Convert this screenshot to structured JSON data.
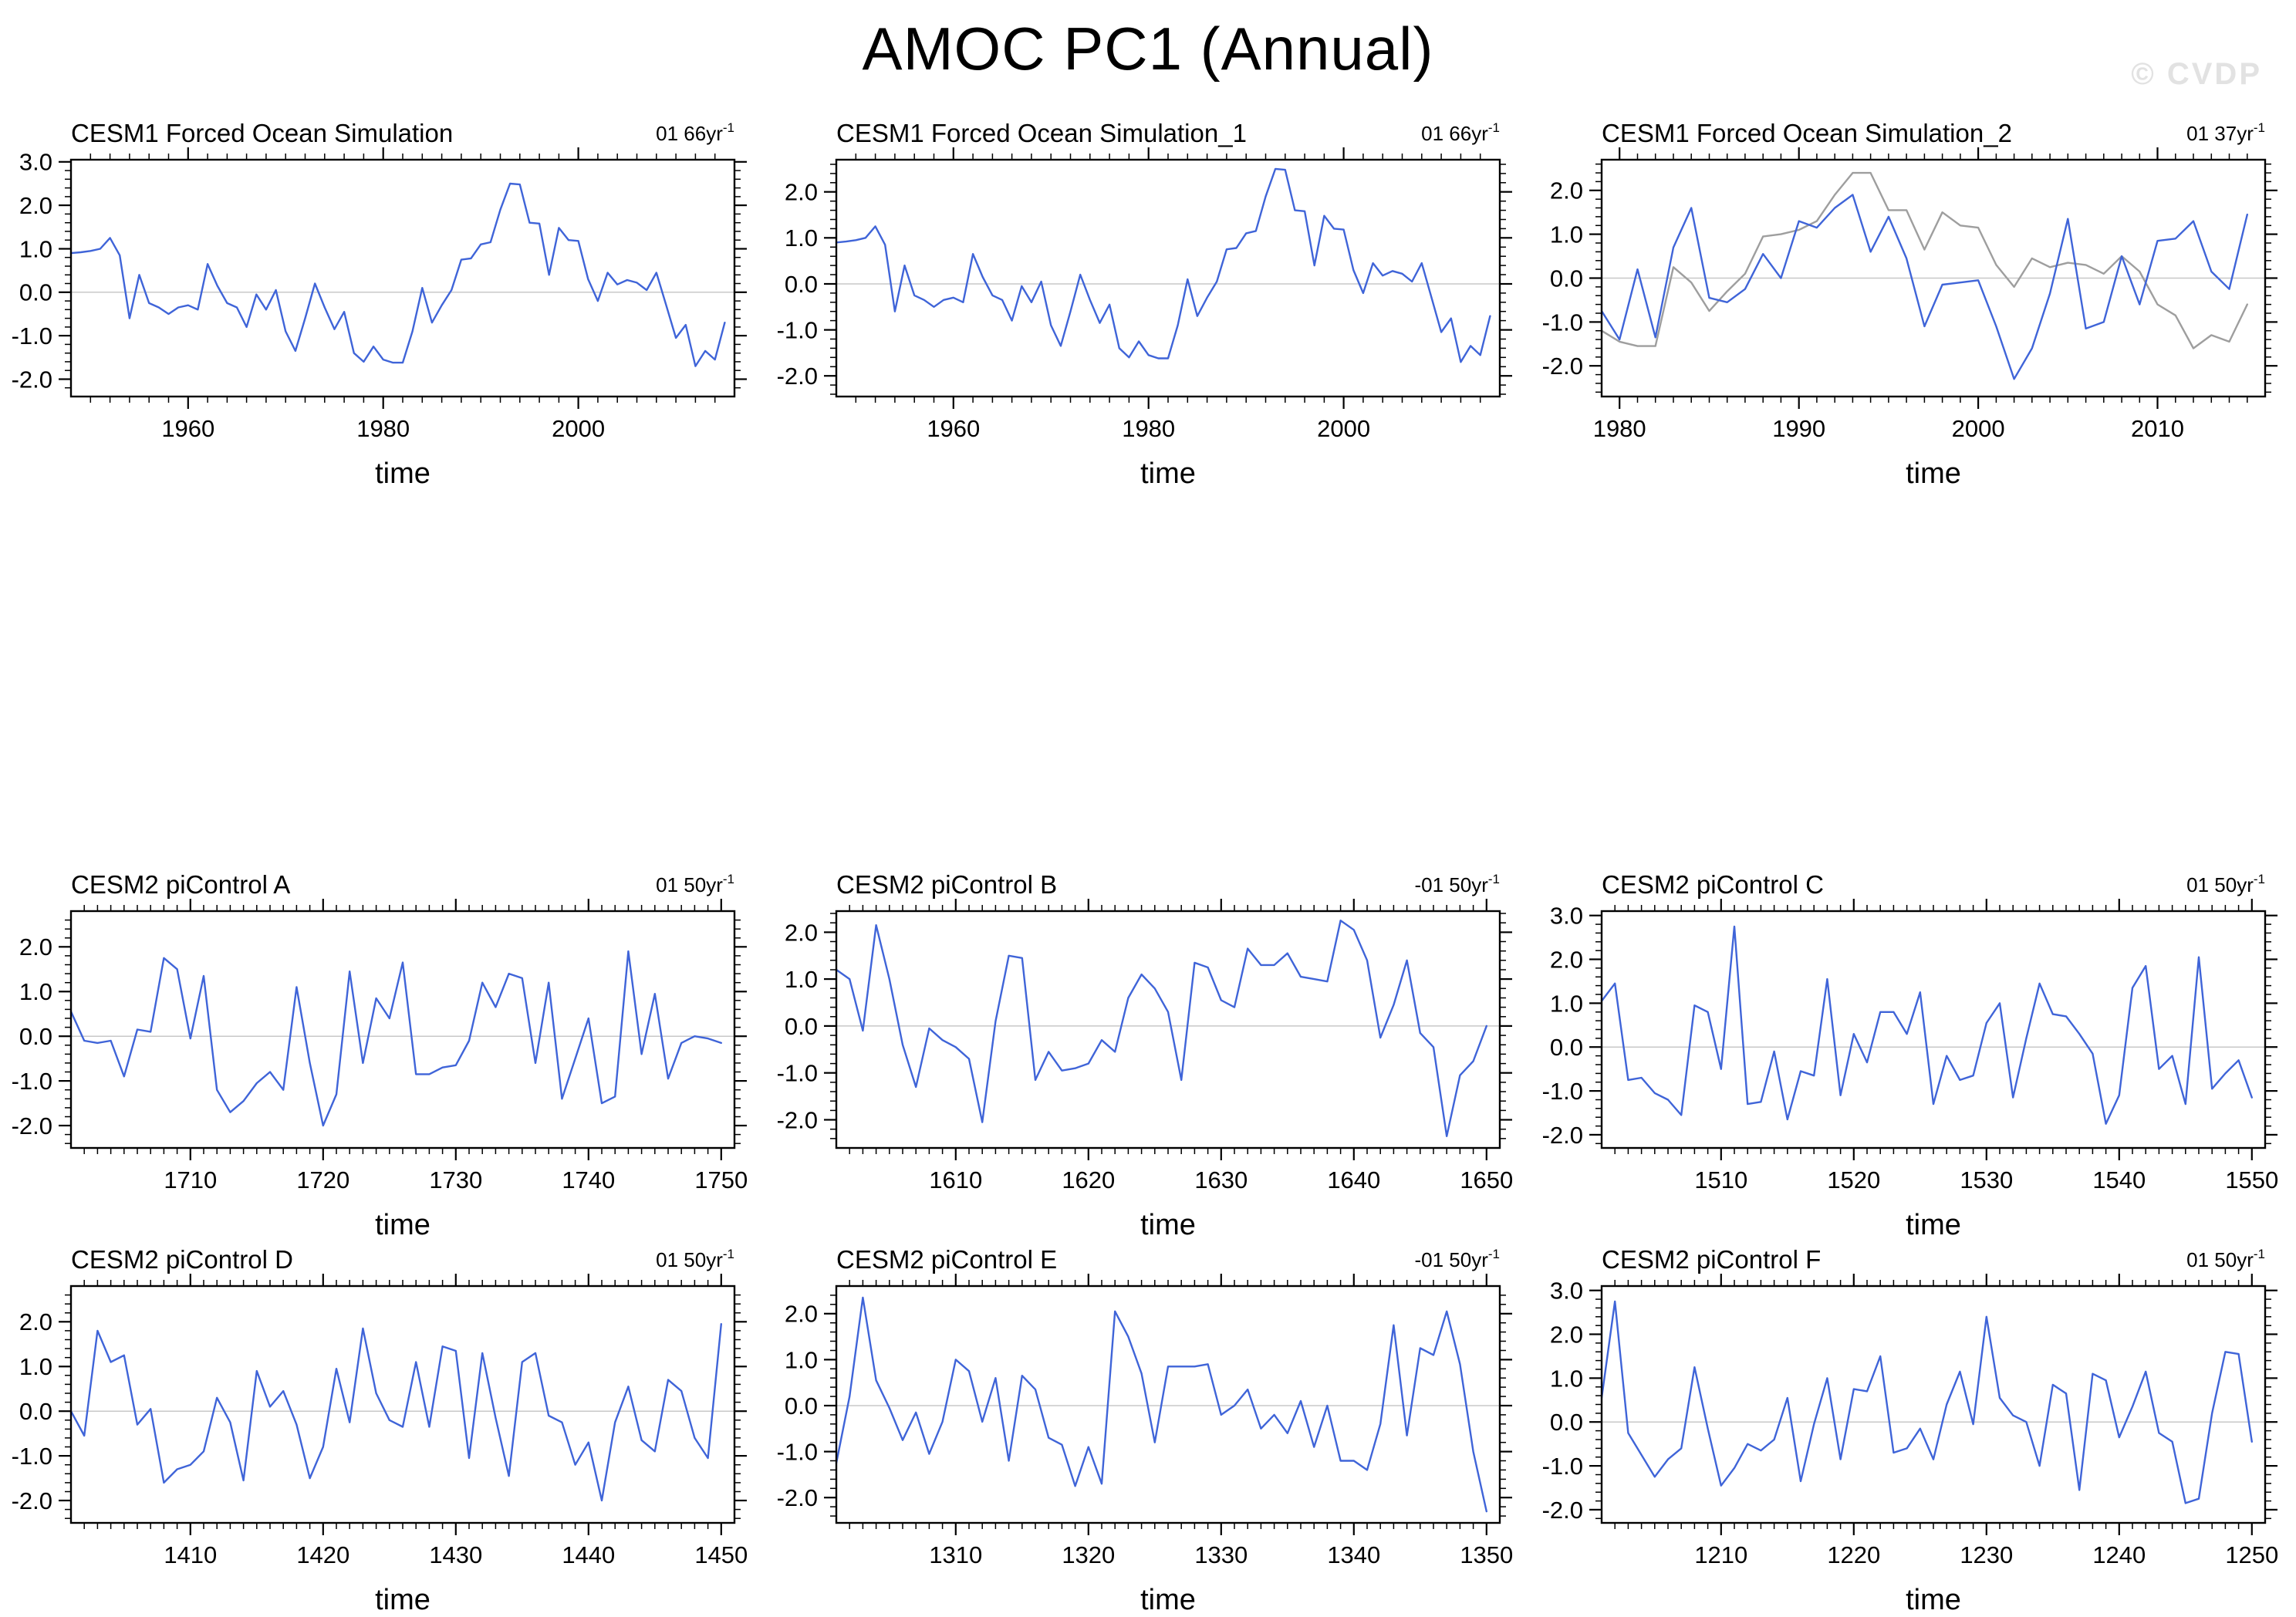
{
  "header": {
    "title": "AMOC PC1 (Annual)",
    "watermark": "© CVDP"
  },
  "colors": {
    "line_blue": "#3f64d8",
    "line_gray": "#9e9e9e",
    "zero_line": "#c8c8c8",
    "axis": "#000000",
    "watermark": "#e2e2e2",
    "background": "#ffffff"
  },
  "chart_data": [
    {
      "id": "cesm1-forced-ocean-simulation",
      "type": "line",
      "title": "CESM1 Forced Ocean Simulation",
      "corner_label": "01 66yr",
      "corner_sup": "-1",
      "xlabel": "time",
      "x_range": [
        1948,
        2016
      ],
      "x_major_ticks": [
        1960,
        1980,
        2000
      ],
      "x_minor_step": 2,
      "ylim": [
        -2.4,
        3.05
      ],
      "y_tick_labels": [
        "3.0",
        "2.0",
        "1.0",
        "0.0",
        "-1.0",
        "-2.0"
      ],
      "y_minor_step": 0.2,
      "grid": false,
      "legend": "none",
      "series": [
        {
          "name": "series_blue",
          "color": "#3f64d8",
          "x_start": 1948,
          "values": [
            0.9,
            0.92,
            0.95,
            1.0,
            1.25,
            0.85,
            -0.6,
            0.4,
            -0.25,
            -0.35,
            -0.5,
            -0.35,
            -0.3,
            -0.4,
            0.65,
            0.15,
            -0.25,
            -0.35,
            -0.8,
            -0.05,
            -0.4,
            0.05,
            -0.9,
            -1.35,
            -0.6,
            0.2,
            -0.35,
            -0.85,
            -0.45,
            -1.4,
            -1.6,
            -1.25,
            -1.55,
            -1.62,
            -1.62,
            -0.9,
            0.1,
            -0.7,
            -0.3,
            0.05,
            0.75,
            0.78,
            1.1,
            1.15,
            1.9,
            2.5,
            2.48,
            1.6,
            1.58,
            0.4,
            1.48,
            1.2,
            1.18,
            0.3,
            -0.2,
            0.45,
            0.18,
            0.28,
            0.22,
            0.05,
            0.45,
            -0.3,
            -1.05,
            -0.75,
            -1.7,
            -1.35,
            -1.55,
            -0.7
          ]
        }
      ]
    },
    {
      "id": "cesm1-forced-ocean-simulation-1",
      "type": "line",
      "title": "CESM1 Forced Ocean Simulation_1",
      "corner_label": "01 66yr",
      "corner_sup": "-1",
      "xlabel": "time",
      "x_range": [
        1948,
        2016
      ],
      "x_major_ticks": [
        1960,
        1980,
        2000
      ],
      "x_minor_step": 2,
      "ylim": [
        -2.45,
        2.7
      ],
      "y_tick_labels": [
        "2.0",
        "1.0",
        "0.0",
        "-1.0",
        "-2.0"
      ],
      "y_minor_step": 0.2,
      "grid": false,
      "legend": "none",
      "series": [
        {
          "name": "series_blue",
          "color": "#3f64d8",
          "x_start": 1948,
          "values": [
            0.9,
            0.92,
            0.95,
            1.0,
            1.25,
            0.85,
            -0.6,
            0.4,
            -0.25,
            -0.35,
            -0.5,
            -0.35,
            -0.3,
            -0.4,
            0.65,
            0.15,
            -0.25,
            -0.35,
            -0.8,
            -0.05,
            -0.4,
            0.05,
            -0.9,
            -1.35,
            -0.6,
            0.2,
            -0.35,
            -0.85,
            -0.45,
            -1.4,
            -1.6,
            -1.25,
            -1.55,
            -1.62,
            -1.62,
            -0.9,
            0.1,
            -0.7,
            -0.3,
            0.05,
            0.75,
            0.78,
            1.1,
            1.15,
            1.9,
            2.5,
            2.48,
            1.6,
            1.58,
            0.4,
            1.48,
            1.2,
            1.18,
            0.3,
            -0.2,
            0.45,
            0.18,
            0.28,
            0.22,
            0.05,
            0.45,
            -0.3,
            -1.05,
            -0.75,
            -1.7,
            -1.35,
            -1.55,
            -0.7
          ]
        }
      ]
    },
    {
      "id": "cesm1-forced-ocean-simulation-2",
      "type": "line",
      "title": "CESM1 Forced Ocean Simulation_2",
      "corner_label": "01 37yr",
      "corner_sup": "-1",
      "xlabel": "time",
      "x_range": [
        1979,
        2016
      ],
      "x_major_ticks": [
        1980,
        1990,
        2000,
        2010
      ],
      "x_minor_step": 1,
      "ylim": [
        -2.7,
        2.7
      ],
      "y_tick_labels": [
        "2.0",
        "1.0",
        "0.0",
        "-1.0",
        "-2.0"
      ],
      "y_minor_step": 0.2,
      "grid": false,
      "legend": "none",
      "series": [
        {
          "name": "series_gray",
          "color": "#9e9e9e",
          "x_start": 1979,
          "values": [
            -1.2,
            -1.45,
            -1.55,
            -1.55,
            0.25,
            -0.1,
            -0.75,
            -0.3,
            0.1,
            0.95,
            1.0,
            1.1,
            1.3,
            1.9,
            2.4,
            2.4,
            1.55,
            1.55,
            0.65,
            1.5,
            1.2,
            1.15,
            0.3,
            -0.2,
            0.45,
            0.25,
            0.35,
            0.3,
            0.1,
            0.5,
            0.15,
            -0.6,
            -0.85,
            -1.6,
            -1.3,
            -1.45,
            -0.6
          ]
        },
        {
          "name": "series_blue",
          "color": "#3f64d8",
          "x_start": 1979,
          "values": [
            -0.75,
            -1.4,
            0.2,
            -1.35,
            0.7,
            1.6,
            -0.45,
            -0.55,
            -0.25,
            0.55,
            0.0,
            1.3,
            1.15,
            1.6,
            1.9,
            0.6,
            1.4,
            0.45,
            -1.1,
            -0.15,
            -0.1,
            -0.05,
            -1.1,
            -2.3,
            -1.6,
            -0.35,
            1.35,
            -1.15,
            -1.0,
            0.5,
            -0.6,
            0.85,
            0.9,
            1.3,
            0.15,
            -0.25,
            1.45
          ]
        }
      ]
    },
    {
      "id": "cesm2-picontrol-a",
      "type": "line",
      "title": "CESM2 piControl A",
      "corner_label": "01 50yr",
      "corner_sup": "-1",
      "xlabel": "time",
      "x_range": [
        1701,
        1751
      ],
      "x_major_ticks": [
        1710,
        1720,
        1730,
        1740,
        1750
      ],
      "x_minor_step": 1,
      "ylim": [
        -2.5,
        2.8
      ],
      "y_tick_labels": [
        "2.0",
        "1.0",
        "0.0",
        "-1.0",
        "-2.0"
      ],
      "y_minor_step": 0.2,
      "grid": false,
      "legend": "none",
      "series": [
        {
          "name": "series_blue",
          "color": "#3f64d8",
          "x_start": 1701,
          "values": [
            0.55,
            -0.1,
            -0.15,
            -0.1,
            -0.9,
            0.15,
            0.1,
            1.75,
            1.5,
            -0.05,
            1.35,
            -1.2,
            -1.7,
            -1.45,
            -1.05,
            -0.8,
            -1.2,
            1.1,
            -0.6,
            -2.0,
            -1.3,
            1.45,
            -0.6,
            0.85,
            0.4,
            1.65,
            -0.85,
            -0.85,
            -0.7,
            -0.65,
            -0.1,
            1.2,
            0.65,
            1.4,
            1.3,
            -0.6,
            1.2,
            -1.4,
            -0.5,
            0.4,
            -1.5,
            -1.35,
            1.9,
            -0.4,
            0.95,
            -0.95,
            -0.15,
            0.0,
            -0.05,
            -0.15
          ]
        }
      ]
    },
    {
      "id": "cesm2-picontrol-b",
      "type": "line",
      "title": "CESM2 piControl B",
      "corner_label": "-01 50yr",
      "corner_sup": "-1",
      "xlabel": "time",
      "x_range": [
        1601,
        1651
      ],
      "x_major_ticks": [
        1610,
        1620,
        1630,
        1640,
        1650
      ],
      "x_minor_step": 1,
      "ylim": [
        -2.6,
        2.45
      ],
      "y_tick_labels": [
        "2.0",
        "1.0",
        "0.0",
        "-1.0",
        "-2.0"
      ],
      "y_minor_step": 0.2,
      "grid": false,
      "legend": "none",
      "series": [
        {
          "name": "series_blue",
          "color": "#3f64d8",
          "x_start": 1601,
          "values": [
            1.2,
            1.0,
            -0.1,
            2.15,
            1.0,
            -0.4,
            -1.3,
            -0.05,
            -0.3,
            -0.45,
            -0.7,
            -2.05,
            0.1,
            1.5,
            1.45,
            -1.15,
            -0.55,
            -0.95,
            -0.9,
            -0.8,
            -0.3,
            -0.55,
            0.6,
            1.1,
            0.8,
            0.3,
            -1.15,
            1.35,
            1.25,
            0.55,
            0.4,
            1.65,
            1.3,
            1.3,
            1.55,
            1.05,
            1.0,
            0.95,
            2.25,
            2.05,
            1.4,
            -0.25,
            0.45,
            1.4,
            -0.15,
            -0.45,
            -2.35,
            -1.05,
            -0.75,
            0.0
          ]
        }
      ]
    },
    {
      "id": "cesm2-picontrol-c",
      "type": "line",
      "title": "CESM2 piControl C",
      "corner_label": "01 50yr",
      "corner_sup": "-1",
      "xlabel": "time",
      "x_range": [
        1501,
        1551
      ],
      "x_major_ticks": [
        1510,
        1520,
        1530,
        1540,
        1550
      ],
      "x_minor_step": 1,
      "ylim": [
        -2.3,
        3.1
      ],
      "y_tick_labels": [
        "3.0",
        "2.0",
        "1.0",
        "0.0",
        "-1.0",
        "-2.0"
      ],
      "y_minor_step": 0.2,
      "grid": false,
      "legend": "none",
      "series": [
        {
          "name": "series_blue",
          "color": "#3f64d8",
          "x_start": 1501,
          "values": [
            1.05,
            1.45,
            -0.75,
            -0.7,
            -1.05,
            -1.2,
            -1.55,
            0.95,
            0.8,
            -0.5,
            2.75,
            -1.3,
            -1.25,
            -0.1,
            -1.65,
            -0.55,
            -0.65,
            1.55,
            -1.1,
            0.3,
            -0.35,
            0.8,
            0.8,
            0.3,
            1.25,
            -1.3,
            -0.2,
            -0.75,
            -0.65,
            0.55,
            1.0,
            -1.15,
            0.2,
            1.45,
            0.75,
            0.7,
            0.3,
            -0.15,
            -1.75,
            -1.1,
            1.35,
            1.85,
            -0.5,
            -0.2,
            -1.3,
            2.05,
            -0.95,
            -0.6,
            -0.3,
            -1.15
          ]
        }
      ]
    },
    {
      "id": "cesm2-picontrol-d",
      "type": "line",
      "title": "CESM2 piControl D",
      "corner_label": "01 50yr",
      "corner_sup": "-1",
      "xlabel": "time",
      "x_range": [
        1401,
        1451
      ],
      "x_major_ticks": [
        1410,
        1420,
        1430,
        1440,
        1450
      ],
      "x_minor_step": 1,
      "ylim": [
        -2.5,
        2.8
      ],
      "y_tick_labels": [
        "2.0",
        "1.0",
        "0.0",
        "-1.0",
        "-2.0"
      ],
      "y_minor_step": 0.2,
      "grid": false,
      "legend": "none",
      "series": [
        {
          "name": "series_blue",
          "color": "#3f64d8",
          "x_start": 1401,
          "values": [
            0.0,
            -0.55,
            1.8,
            1.1,
            1.25,
            -0.3,
            0.05,
            -1.6,
            -1.3,
            -1.2,
            -0.9,
            0.3,
            -0.25,
            -1.55,
            0.9,
            0.1,
            0.45,
            -0.3,
            -1.5,
            -0.8,
            0.95,
            -0.25,
            1.85,
            0.4,
            -0.2,
            -0.35,
            1.1,
            -0.35,
            1.45,
            1.35,
            -1.05,
            1.3,
            -0.15,
            -1.45,
            1.1,
            1.3,
            -0.1,
            -0.25,
            -1.2,
            -0.7,
            -2.0,
            -0.25,
            0.55,
            -0.65,
            -0.9,
            0.7,
            0.45,
            -0.6,
            -1.05,
            1.95
          ]
        }
      ]
    },
    {
      "id": "cesm2-picontrol-e",
      "type": "line",
      "title": "CESM2 piControl E",
      "corner_label": "-01 50yr",
      "corner_sup": "-1",
      "xlabel": "time",
      "x_range": [
        1301,
        1351
      ],
      "x_major_ticks": [
        1310,
        1320,
        1330,
        1340,
        1350
      ],
      "x_minor_step": 1,
      "ylim": [
        -2.55,
        2.6
      ],
      "y_tick_labels": [
        "2.0",
        "1.0",
        "0.0",
        "-1.0",
        "-2.0"
      ],
      "y_minor_step": 0.2,
      "grid": false,
      "legend": "none",
      "series": [
        {
          "name": "series_blue",
          "color": "#3f64d8",
          "x_start": 1301,
          "values": [
            -1.25,
            0.2,
            2.35,
            0.55,
            -0.05,
            -0.75,
            -0.15,
            -1.05,
            -0.35,
            1.0,
            0.75,
            -0.35,
            0.6,
            -1.2,
            0.65,
            0.35,
            -0.7,
            -0.85,
            -1.75,
            -0.9,
            -1.7,
            2.05,
            1.5,
            0.7,
            -0.8,
            0.85,
            0.85,
            0.85,
            0.9,
            -0.2,
            0.0,
            0.35,
            -0.5,
            -0.2,
            -0.6,
            0.1,
            -0.9,
            0.0,
            -1.2,
            -1.2,
            -1.4,
            -0.4,
            1.75,
            -0.65,
            1.25,
            1.1,
            2.05,
            0.9,
            -1.0,
            -2.3
          ]
        }
      ]
    },
    {
      "id": "cesm2-picontrol-f",
      "type": "line",
      "title": "CESM2 piControl F",
      "corner_label": "01 50yr",
      "corner_sup": "-1",
      "xlabel": "time",
      "x_range": [
        1201,
        1251
      ],
      "x_major_ticks": [
        1210,
        1220,
        1230,
        1240,
        1250
      ],
      "x_minor_step": 1,
      "ylim": [
        -2.3,
        3.1
      ],
      "y_tick_labels": [
        "3.0",
        "2.0",
        "1.0",
        "0.0",
        "-1.0",
        "-2.0"
      ],
      "y_minor_step": 0.2,
      "grid": false,
      "legend": "none",
      "series": [
        {
          "name": "series_blue",
          "color": "#3f64d8",
          "x_start": 1201,
          "values": [
            0.55,
            2.75,
            -0.25,
            -0.75,
            -1.25,
            -0.85,
            -0.6,
            1.25,
            -0.15,
            -1.45,
            -1.05,
            -0.5,
            -0.65,
            -0.4,
            0.55,
            -1.35,
            -0.05,
            1.0,
            -0.85,
            0.75,
            0.7,
            1.5,
            -0.7,
            -0.6,
            -0.15,
            -0.85,
            0.4,
            1.15,
            -0.05,
            2.4,
            0.55,
            0.15,
            0.0,
            -1.0,
            0.85,
            0.65,
            -1.55,
            1.1,
            0.95,
            -0.35,
            0.35,
            1.15,
            -0.25,
            -0.45,
            -1.85,
            -1.75,
            0.2,
            1.6,
            1.55,
            -0.45
          ]
        }
      ]
    }
  ]
}
